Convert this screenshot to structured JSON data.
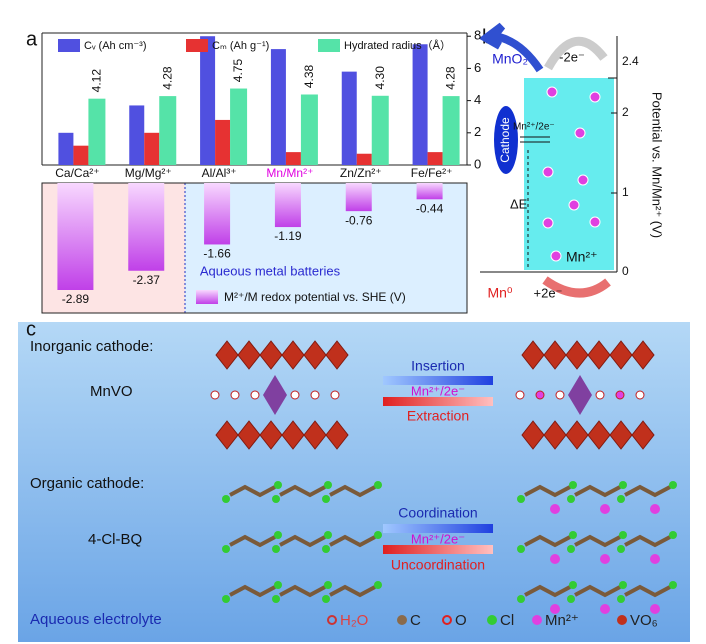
{
  "chart_data": [
    {
      "type": "bar",
      "categories": [
        "Ca/Ca²⁺",
        "Mg/Mg²⁺",
        "Al/Al³⁺",
        "Mn/Mn²⁺",
        "Zn/Zn²⁺",
        "Fe/Fe²⁺"
      ],
      "series": [
        {
          "name": "Cᵥ (Ah cm⁻³)",
          "color": "#5050e0",
          "values": [
            2.0,
            3.7,
            8.0,
            7.2,
            5.8,
            7.5
          ]
        },
        {
          "name": "Cₘ (Ah g⁻¹)",
          "color": "#e63232",
          "values": [
            1.2,
            2.0,
            2.8,
            0.8,
            0.7,
            0.8
          ]
        },
        {
          "name": "Hydrated radius（Å）",
          "color": "#55e3a8",
          "values": [
            4.12,
            4.28,
            4.75,
            4.38,
            4.3,
            4.28
          ],
          "value_labels": [
            "4.12",
            "4.28",
            "4.75",
            "4.38",
            "4.30",
            "4.28"
          ]
        }
      ],
      "ylim": [
        0,
        8.2
      ],
      "yticks": [
        0,
        2,
        4,
        6,
        8
      ],
      "highlight_category_color": "#e000e0"
    },
    {
      "type": "hanging-bar",
      "legend": "M²⁺/M redox potential vs. SHE (V)",
      "color": "#c040e8",
      "values": [
        -2.89,
        -2.37,
        -1.66,
        -1.19,
        -0.76,
        -0.44
      ],
      "annotation": "Aqueous metal batteries"
    }
  ],
  "panels": {
    "a": "a",
    "b": "b",
    "c": "c"
  },
  "panel_b": {
    "top_species": "MnO₂",
    "top_electrons": "-2e⁻",
    "axis_ticks": [
      "0",
      "1",
      "2",
      "2.4"
    ],
    "axis_label": "Potential vs. Mn/Mn²⁺ (V)",
    "electrode": "Cathode",
    "couple": "Mn²⁺/2e⁻",
    "gap": "ΔE",
    "ion": "Mn²⁺",
    "bottom_species": "Mn⁰",
    "bottom_electrons": "+2e⁻"
  },
  "panel_c": {
    "inorganic_title": "Inorganic cathode:",
    "inorganic_name": "MnVO",
    "insertion": "Insertion",
    "inorganic_couple": "Mn²⁺/2e⁻",
    "extraction": "Extraction",
    "organic_title": "Organic cathode:",
    "organic_name": "4-Cl-BQ",
    "coordination": "Coordination",
    "organic_couple": "Mn²⁺/2e⁻",
    "uncoordination": "Uncoordination",
    "electrolyte": "Aqueous electrolyte",
    "legend": [
      "H₂O",
      "C",
      "O",
      "Cl",
      "Mn²⁺",
      "VO₆"
    ]
  }
}
